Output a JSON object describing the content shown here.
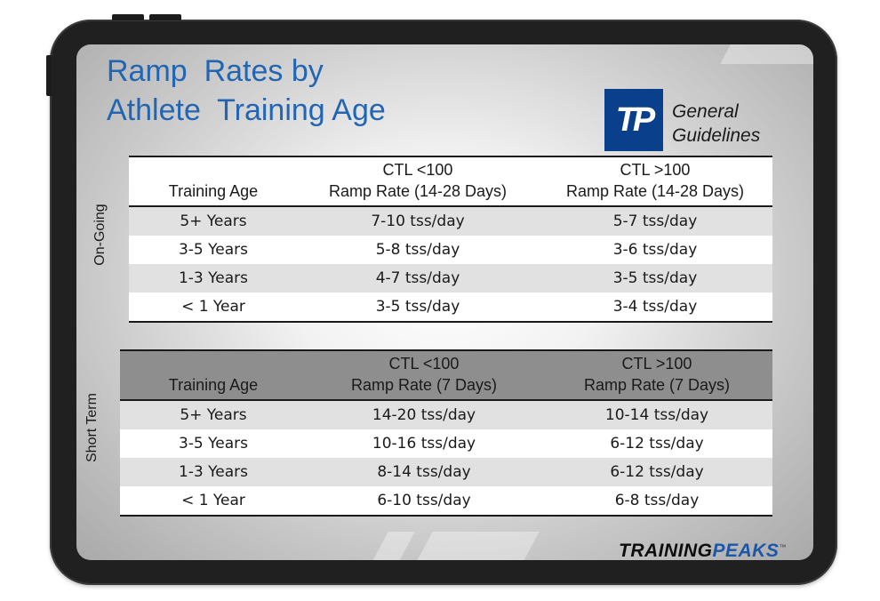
{
  "title": {
    "line1": "Ramp  Rates by",
    "line2": "Athlete  Training Age"
  },
  "logo": {
    "mark": "TP",
    "caption_line1": "General",
    "caption_line2": "Guidelines"
  },
  "brand": {
    "part1": "TRAINING",
    "part2": "PEAKS",
    "tm": "™"
  },
  "colors": {
    "title_blue": "#2266b3",
    "logo_navy": "#0a3f8c",
    "brand_blue": "#1c56a8",
    "header_gray": "#8e8e8e"
  },
  "ongoing": {
    "side_label": "On-Going",
    "headers": {
      "col1": "Training Age",
      "col2_line1": "CTL <100",
      "col2_line2": "Ramp Rate (14-28 Days)",
      "col3_line1": "CTL >100",
      "col3_line2": "Ramp Rate (14-28 Days)"
    },
    "rows": [
      {
        "age": "5+ Years",
        "low": "7-10 tss/day",
        "high": "5-7 tss/day"
      },
      {
        "age": "3-5 Years",
        "low": "5-8 tss/day",
        "high": "3-6 tss/day"
      },
      {
        "age": "1-3 Years",
        "low": "4-7 tss/day",
        "high": "3-5 tss/day"
      },
      {
        "age": "< 1 Year",
        "low": "3-5 tss/day",
        "high": "3-4 tss/day"
      }
    ]
  },
  "shortterm": {
    "side_label": "Short Term",
    "headers": {
      "col1": "Training Age",
      "col2_line1": "CTL <100",
      "col2_line2": "Ramp Rate (7 Days)",
      "col3_line1": "CTL >100",
      "col3_line2": "Ramp Rate (7 Days)"
    },
    "rows": [
      {
        "age": "5+ Years",
        "low": "14-20 tss/day",
        "high": "10-14 tss/day"
      },
      {
        "age": "3-5 Years",
        "low": "10-16 tss/day",
        "high": "6-12 tss/day"
      },
      {
        "age": "1-3 Years",
        "low": "8-14 tss/day",
        "high": "6-12 tss/day"
      },
      {
        "age": "< 1 Year",
        "low": "6-10 tss/day",
        "high": "6-8 tss/day"
      }
    ]
  }
}
